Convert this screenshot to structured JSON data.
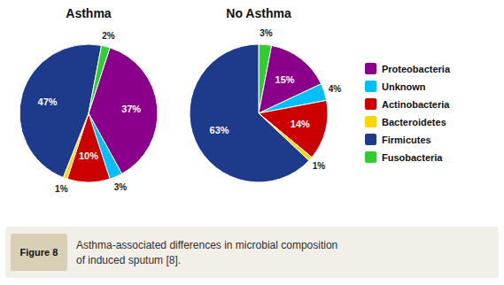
{
  "chart_data": [
    {
      "type": "pie",
      "title": "Asthma",
      "categories": [
        "Proteobacteria",
        "Unknown",
        "Actinobacteria",
        "Bacteroidetes",
        "Firmicutes",
        "Fusobacteria"
      ],
      "values": [
        37,
        3,
        10,
        1,
        47,
        2
      ],
      "value_labels": [
        "37%",
        "3%",
        "10%",
        "1%",
        "47%",
        "2%"
      ],
      "colors": [
        "#8B008B",
        "#00BFFF",
        "#CC0000",
        "#FFD700",
        "#1E3A8A",
        "#32CD32"
      ],
      "data_labels": true,
      "legend": "right",
      "annotations": [
        "Figure 8",
        "Asthma-associated differences in microbial composition",
        "of induced sputum [8]."
      ]
    },
    {
      "type": "pie",
      "title": "No Asthma",
      "categories": [
        "Fusobacteria",
        "Proteobacteria",
        "Unknown",
        "Actinobacteria",
        "Bacteroidetes",
        "Firmicutes"
      ],
      "values": [
        3,
        15,
        4,
        14,
        1,
        63
      ],
      "value_labels": [
        "3%",
        "15%",
        "4%",
        "14%",
        "1%",
        "63%"
      ],
      "colors": [
        "#32CD32",
        "#8B008B",
        "#00BFFF",
        "#CC0000",
        "#FFD700",
        "#1E3A8A"
      ],
      "data_labels": true
    }
  ]
}
